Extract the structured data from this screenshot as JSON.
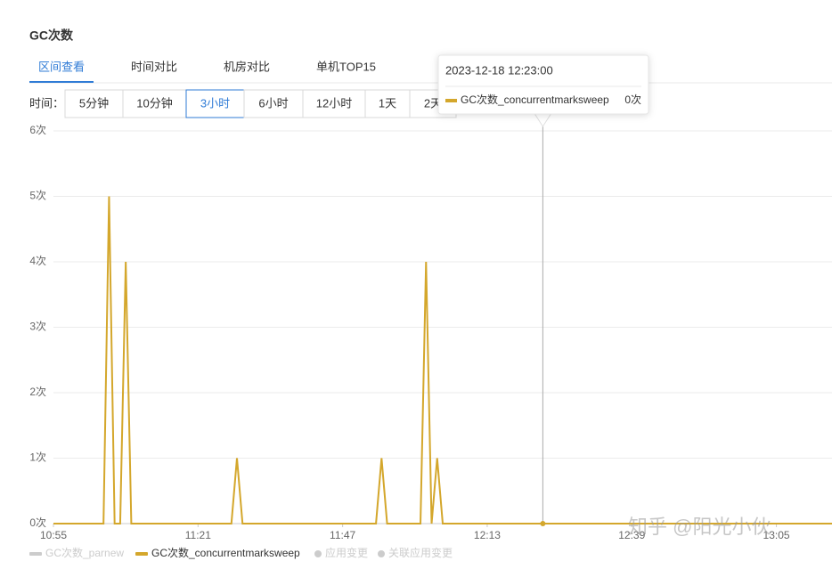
{
  "header": {
    "title": "GC次数",
    "tabs": [
      "区间查看",
      "时间对比",
      "机房对比",
      "单机TOP15"
    ],
    "active_tab": 0,
    "time_label": "时间：",
    "time_buttons": [
      "5分钟",
      "10分钟",
      "3小时",
      "6小时",
      "12小时",
      "1天",
      "2天"
    ],
    "active_button": 2
  },
  "chart_data": {
    "type": "line",
    "x": [
      "10:55",
      "11:04",
      "11:05",
      "11:06",
      "11:07",
      "11:08",
      "11:09",
      "11:27",
      "11:28",
      "11:29",
      "11:53",
      "11:54",
      "11:55",
      "12:01",
      "12:02",
      "12:03",
      "12:04",
      "12:05",
      "13:15"
    ],
    "series": [
      {
        "name": "GC次数_concurrentmarksweep",
        "color": "#d4a72c",
        "values": [
          0,
          0,
          5,
          0,
          0,
          4,
          0,
          0,
          1,
          0,
          0,
          1,
          0,
          0,
          4,
          0,
          1,
          0,
          0
        ]
      }
    ],
    "xlim": [
      "10:55",
      "13:15"
    ],
    "xticks": [
      "10:55",
      "11:21",
      "11:47",
      "12:13",
      "12:39",
      "13:05"
    ],
    "ylim": [
      0,
      6
    ],
    "yticks": [
      {
        "value": 0,
        "label": "0次"
      },
      {
        "value": 1,
        "label": "1次"
      },
      {
        "value": 2,
        "label": "2次"
      },
      {
        "value": 3,
        "label": "3次"
      },
      {
        "value": 4,
        "label": "4次"
      },
      {
        "value": 5,
        "label": "5次"
      },
      {
        "value": 6,
        "label": "6次"
      }
    ],
    "grid": true,
    "legend": [
      {
        "name": "GC次数_parnew",
        "color": "#cccccc",
        "marker": "line",
        "active": false
      },
      {
        "name": "GC次数_concurrentmarksweep",
        "color": "#d4a72c",
        "marker": "line",
        "active": true
      },
      {
        "name": "应用变更",
        "color": "#cccccc",
        "marker": "dot",
        "active": false
      },
      {
        "name": "关联应用变更",
        "color": "#cccccc",
        "marker": "dot",
        "active": false
      }
    ],
    "tooltip": {
      "time": "2023-12-18 12:23:00",
      "x": "12:23",
      "series_name": "GC次数_concurrentmarksweep",
      "value": {
        "value": 0,
        "label": "0次"
      }
    }
  },
  "watermark": "知乎 @阳光小伙"
}
